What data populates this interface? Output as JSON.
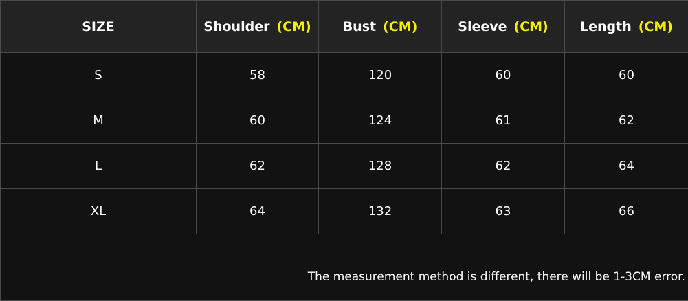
{
  "headers": [
    {
      "label": "SIZE",
      "unit": ""
    },
    {
      "label": "Shoulder",
      "unit": "(CM)"
    },
    {
      "label": "Bust",
      "unit": "(CM)"
    },
    {
      "label": "Sleeve",
      "unit": "(CM)"
    },
    {
      "label": "Length",
      "unit": "(CM)"
    }
  ],
  "rows": [
    [
      "S",
      "58",
      "120",
      "60",
      "60"
    ],
    [
      "M",
      "60",
      "124",
      "61",
      "62"
    ],
    [
      "L",
      "62",
      "128",
      "62",
      "64"
    ],
    [
      "XL",
      "64",
      "132",
      "63",
      "66"
    ]
  ],
  "note": "The measurement method is different, there will be 1-3CM error.",
  "colors": {
    "unit": "#f5f000",
    "header_bg": "#232323",
    "body_bg": "#121212"
  }
}
